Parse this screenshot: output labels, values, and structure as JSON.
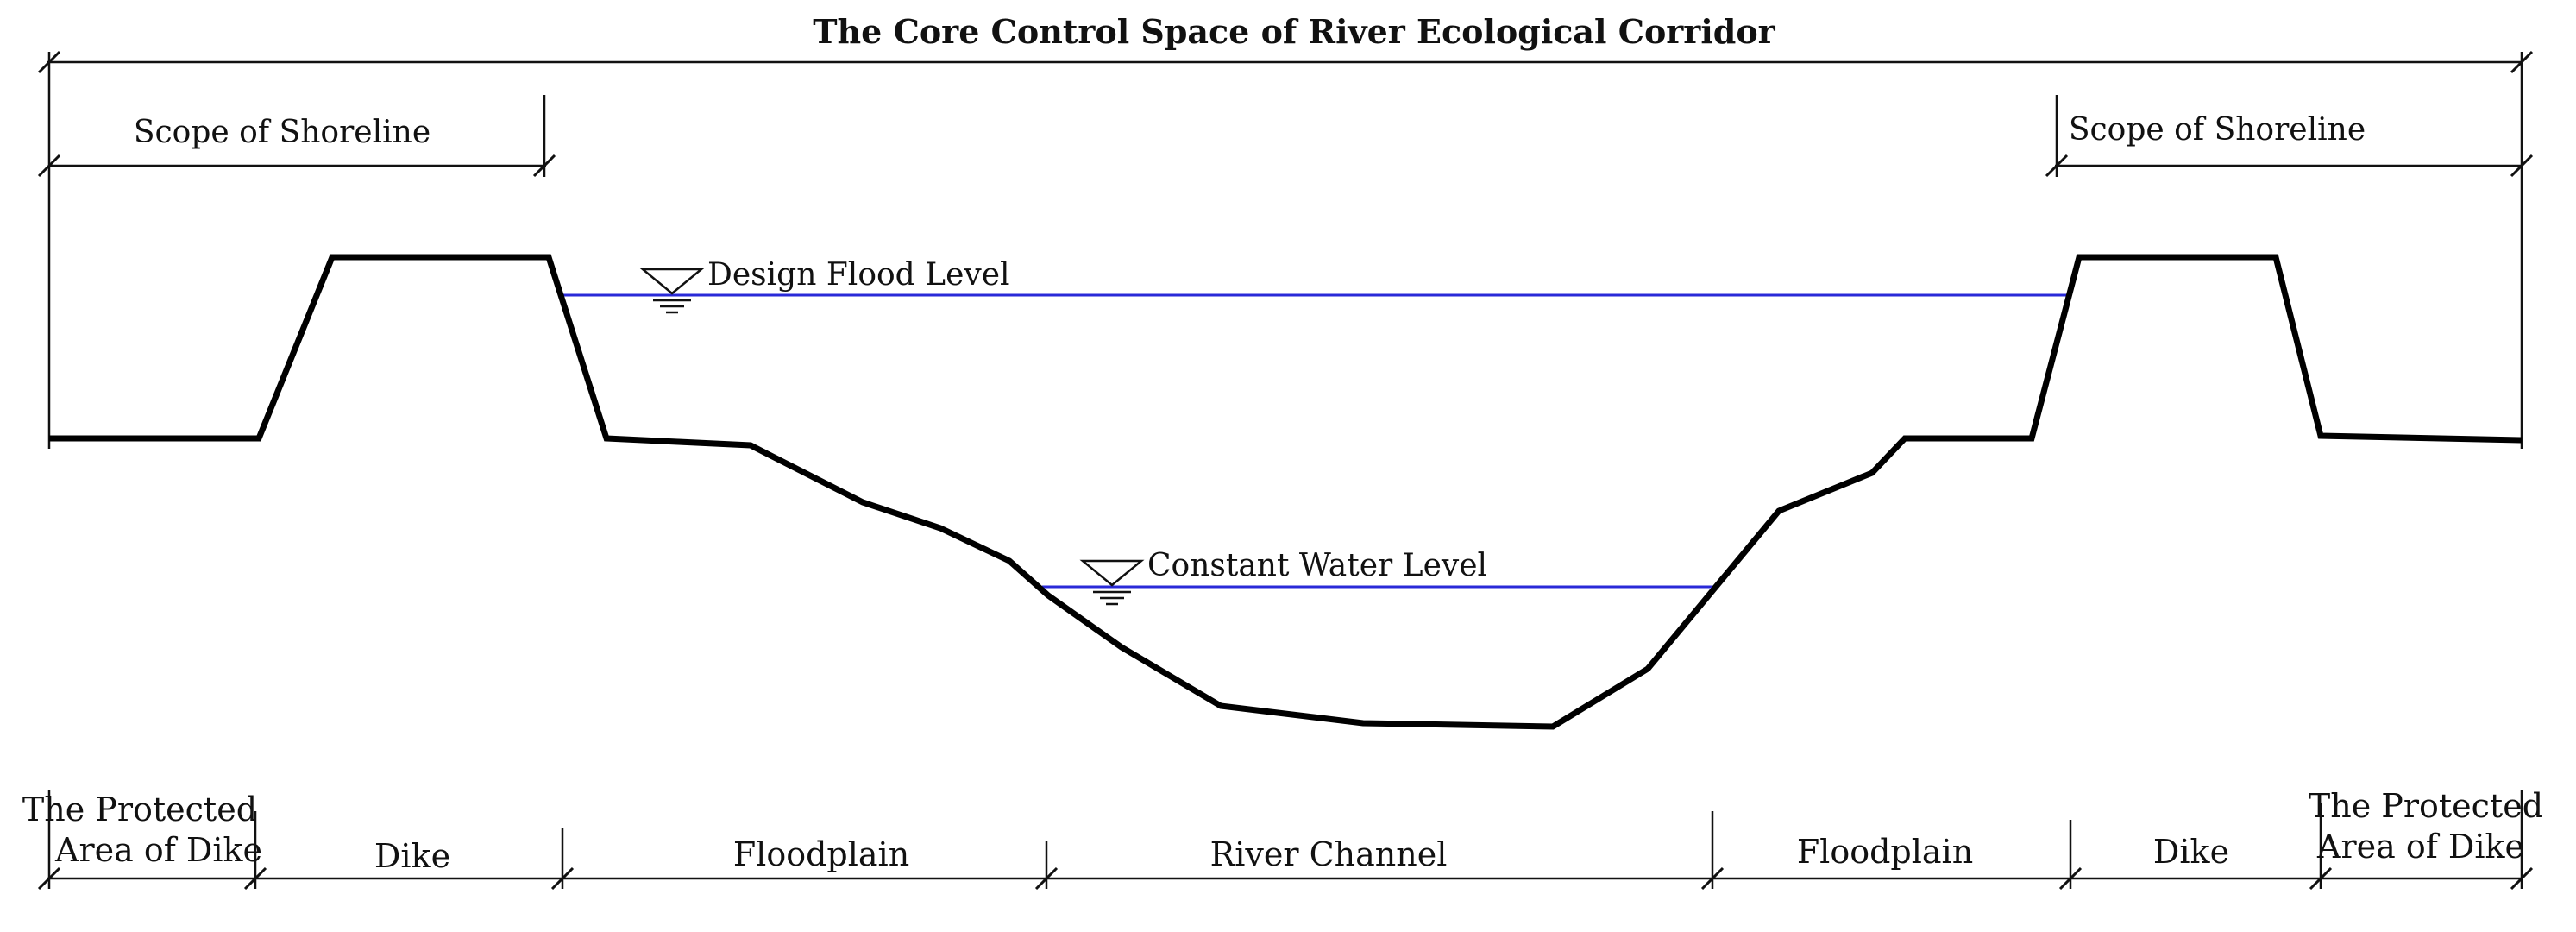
{
  "title": "The Core Control Space of River Ecological Corridor",
  "shoreline": {
    "left": "Scope of Shoreline",
    "right": "Scope of Shoreline"
  },
  "water_levels": {
    "design_flood": "Design Flood Level",
    "constant": "Constant Water Level"
  },
  "zones": {
    "protected_left": {
      "line1": "The Protected",
      "line2": "Area of Dike"
    },
    "dike_left": "Dike",
    "floodplain_left": "Floodplain",
    "river_channel": "River Channel",
    "floodplain_right": "Floodplain",
    "dike_right": "Dike",
    "protected_right": {
      "line1": "The Protected",
      "line2": "Area of Dike"
    }
  },
  "colors": {
    "profile": "#000000",
    "water_line": "#2a2ad8",
    "dimension_line": "#111111"
  }
}
